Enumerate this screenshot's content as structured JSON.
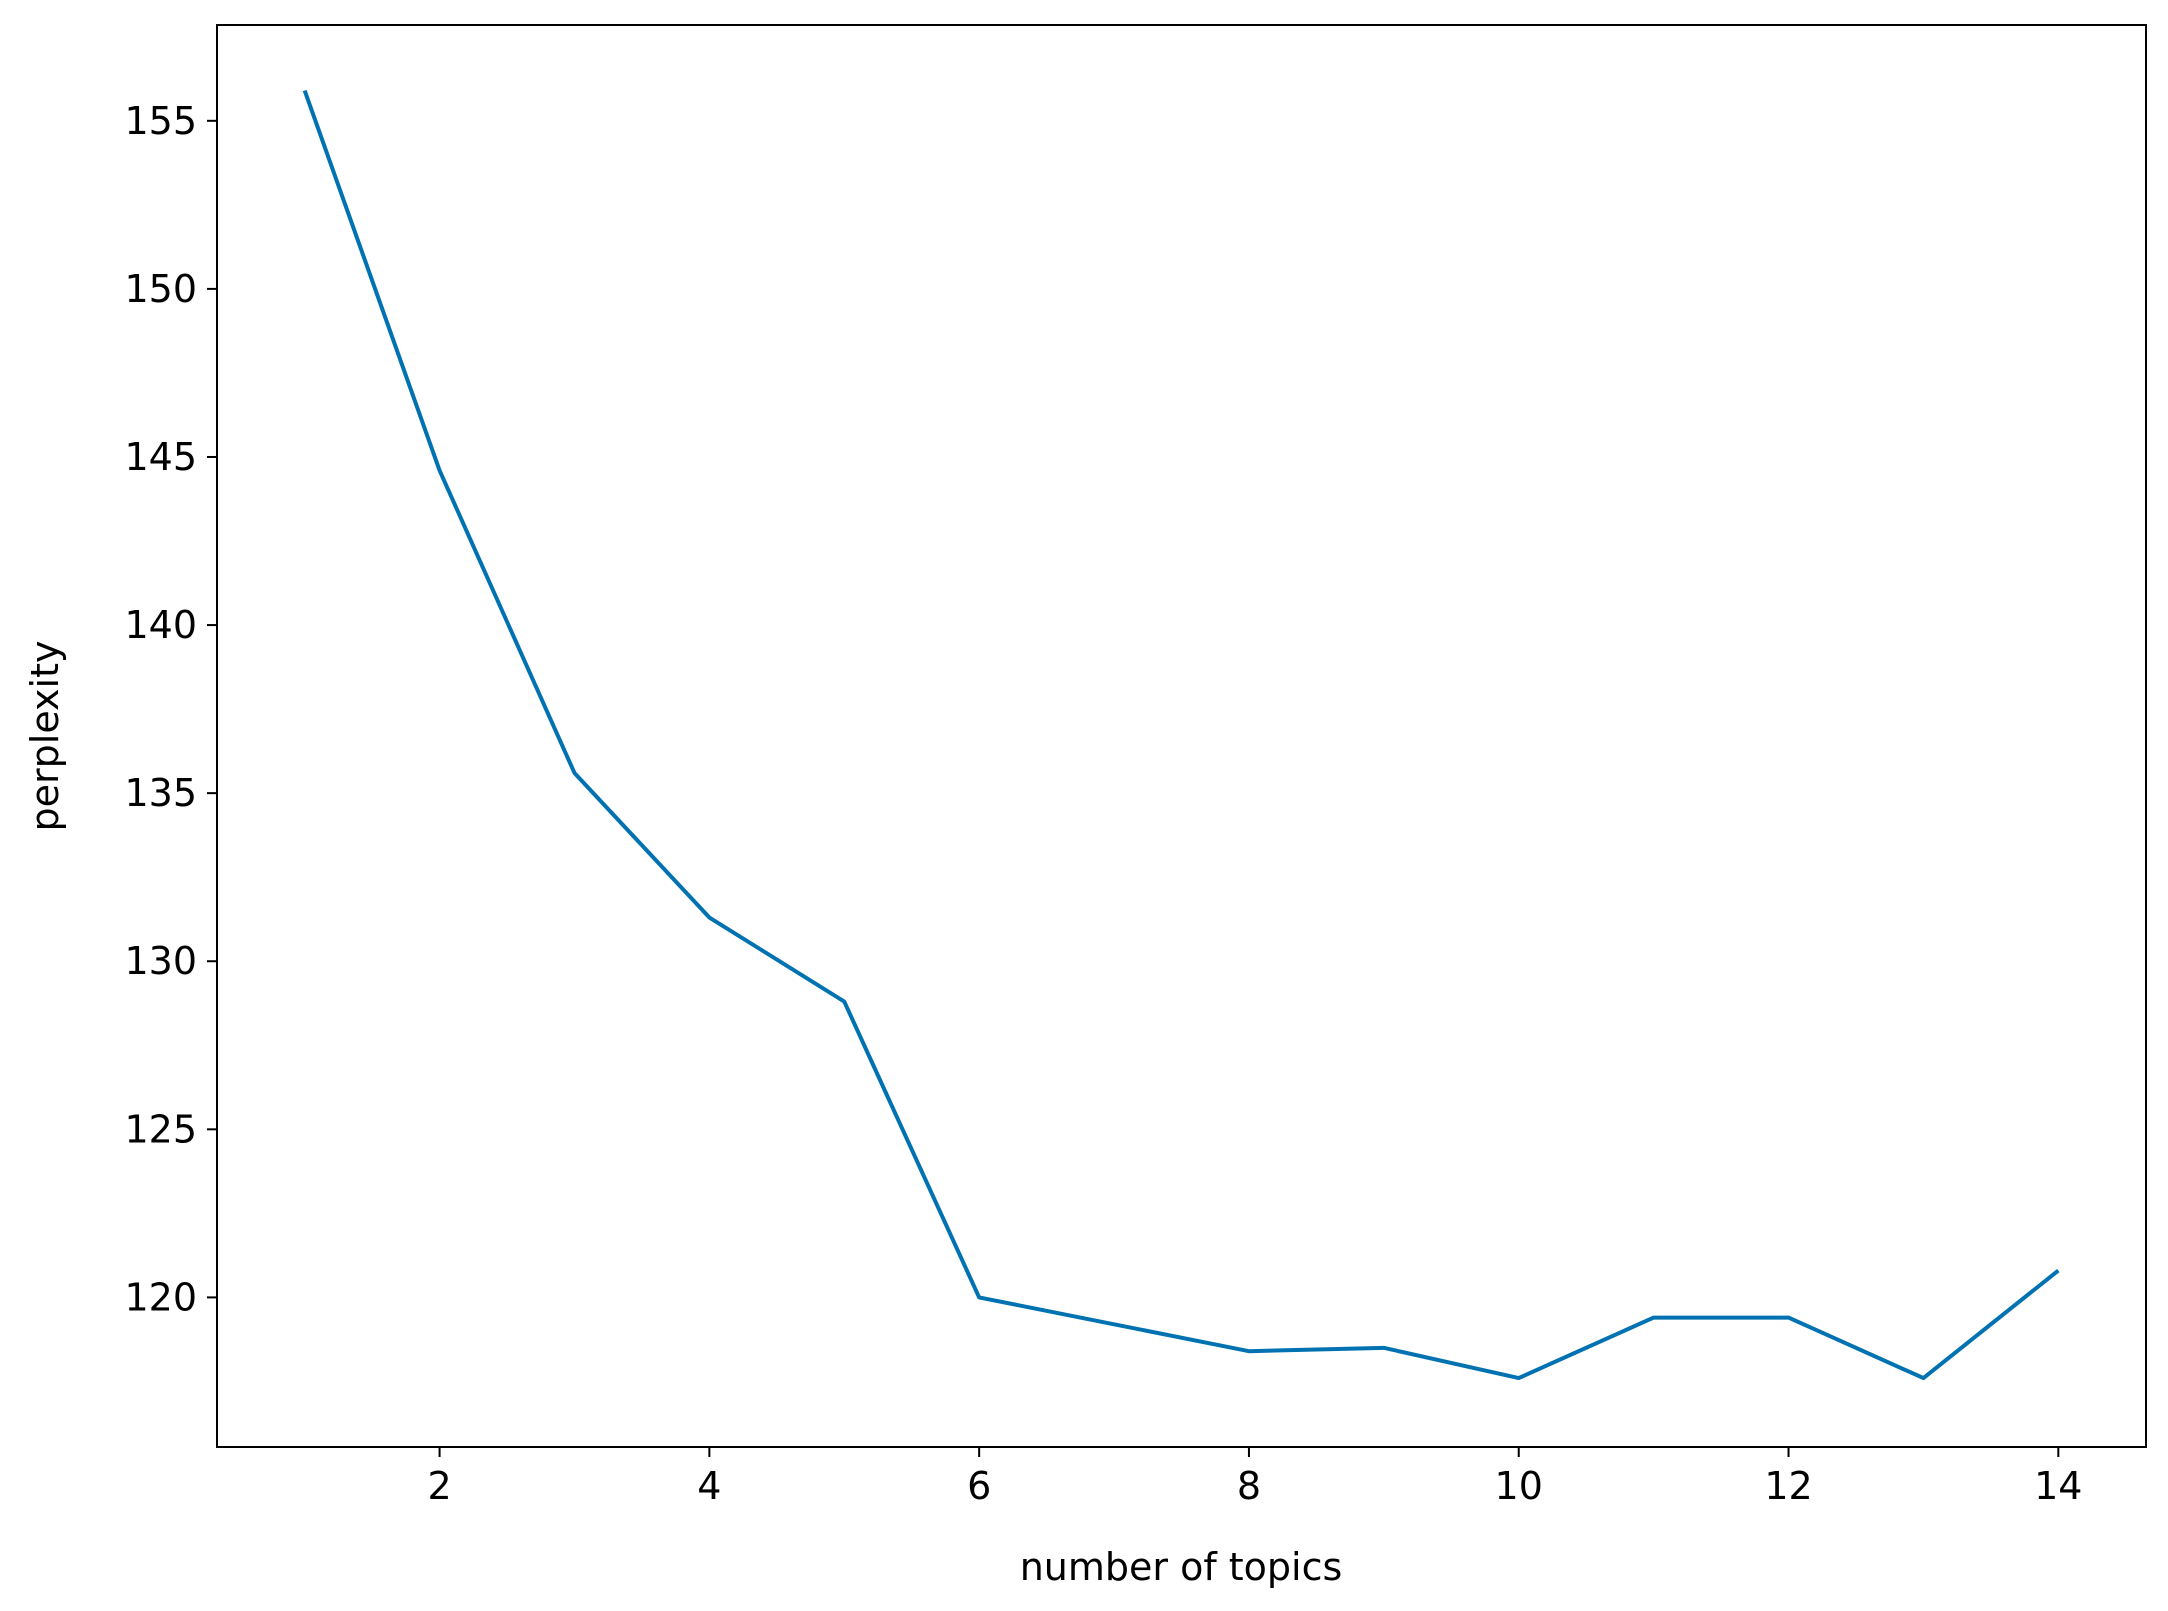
{
  "chart_data": {
    "type": "line",
    "x_label": "number of topics",
    "y_label": "perplexity",
    "x": [
      1,
      2,
      3,
      4,
      5,
      6,
      7,
      8,
      9,
      10,
      11,
      12,
      13,
      14
    ],
    "series": [
      {
        "name": "perplexity",
        "color": "#0072b2",
        "values": [
          155.9,
          144.6,
          135.6,
          131.3,
          128.8,
          120.0,
          119.2,
          118.4,
          118.5,
          117.6,
          119.4,
          119.4,
          117.6,
          120.8
        ]
      }
    ],
    "xlim": [
      0.35,
      14.65
    ],
    "xticks": [
      2,
      4,
      6,
      8,
      10,
      12,
      14
    ],
    "ylim": [
      115.55,
      157.85
    ],
    "yticks": [
      120,
      125,
      130,
      135,
      140,
      145,
      150,
      155
    ],
    "grid": false
  }
}
